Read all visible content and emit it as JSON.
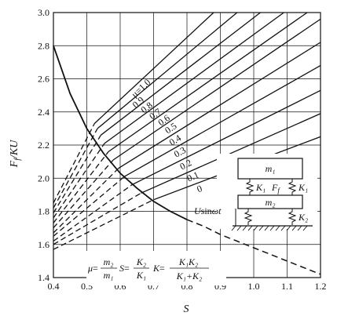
{
  "chart_data": {
    "type": "line",
    "xlabel": "S",
    "ylabel_main": "F",
    "ylabel_sub": "f",
    "ylabel_tail": "/KU",
    "xlim": [
      0.4,
      1.2
    ],
    "ylim": [
      1.4,
      3.0
    ],
    "x_ticks": [
      "0.4",
      "0.5",
      "0.6",
      "0.7",
      "0.8",
      "0.9",
      "1.0",
      "1.1",
      "1.2"
    ],
    "y_ticks": [
      "1.4",
      "1.6",
      "1.8",
      "2.0",
      "2.2",
      "2.4",
      "2.6",
      "2.8",
      "3.0"
    ],
    "grid": true,
    "series": [
      {
        "name": "μ=1.0",
        "label": "μ=1.0",
        "dashed": {
          "x": [
            0.4,
            0.523
          ],
          "y": [
            1.85,
            2.33
          ]
        },
        "solid": {
          "x": [
            0.523,
            0.88
          ],
          "y": [
            2.33,
            3.0
          ]
        }
      },
      {
        "name": "0.9",
        "label": "0.9",
        "dashed": {
          "x": [
            0.4,
            0.532
          ],
          "y": [
            1.82,
            2.3
          ]
        },
        "solid": {
          "x": [
            0.532,
            0.95
          ],
          "y": [
            2.3,
            3.0
          ]
        }
      },
      {
        "name": "0.8",
        "label": "0.8",
        "dashed": {
          "x": [
            0.4,
            0.542
          ],
          "y": [
            1.79,
            2.26
          ]
        },
        "solid": {
          "x": [
            0.542,
            1.02
          ],
          "y": [
            2.26,
            3.0
          ]
        }
      },
      {
        "name": "0.7",
        "label": "0.7",
        "dashed": {
          "x": [
            0.4,
            0.553
          ],
          "y": [
            1.76,
            2.21
          ]
        },
        "solid": {
          "x": [
            0.553,
            1.09
          ],
          "y": [
            2.21,
            3.0
          ]
        }
      },
      {
        "name": "0.6",
        "label": "0.6",
        "dashed": {
          "x": [
            0.4,
            0.565
          ],
          "y": [
            1.73,
            2.16
          ]
        },
        "solid": {
          "x": [
            0.565,
            1.16
          ],
          "y": [
            2.16,
            3.0
          ]
        }
      },
      {
        "name": "0.5",
        "label": "0.5",
        "dashed": {
          "x": [
            0.4,
            0.579
          ],
          "y": [
            1.7,
            2.11
          ]
        },
        "solid": {
          "x": [
            0.579,
            1.2
          ],
          "y": [
            2.11,
            2.96
          ]
        }
      },
      {
        "name": "0.4",
        "label": "0.4",
        "dashed": {
          "x": [
            0.4,
            0.595
          ],
          "y": [
            1.67,
            2.06
          ]
        },
        "solid": {
          "x": [
            0.595,
            1.2
          ],
          "y": [
            2.06,
            2.82
          ]
        }
      },
      {
        "name": "0.3",
        "label": "0.3",
        "dashed": {
          "x": [
            0.4,
            0.613
          ],
          "y": [
            1.65,
            2.01
          ]
        },
        "solid": {
          "x": [
            0.613,
            1.2
          ],
          "y": [
            2.01,
            2.68
          ]
        }
      },
      {
        "name": "0.2",
        "label": "0.2",
        "dashed": {
          "x": [
            0.4,
            0.635
          ],
          "y": [
            1.62,
            1.96
          ]
        },
        "solid": {
          "x": [
            0.635,
            1.2
          ],
          "y": [
            1.96,
            2.53
          ]
        }
      },
      {
        "name": "0.1",
        "label": "0.1",
        "dashed": {
          "x": [
            0.4,
            0.662
          ],
          "y": [
            1.6,
            1.91
          ]
        },
        "solid": {
          "x": [
            0.662,
            1.2
          ],
          "y": [
            1.91,
            2.39
          ]
        }
      },
      {
        "name": "0",
        "label": "0",
        "dashed": {
          "x": [
            0.4,
            0.7
          ],
          "y": [
            1.57,
            1.87
          ]
        },
        "solid": {
          "x": [
            0.7,
            1.2
          ],
          "y": [
            1.87,
            2.25
          ]
        }
      }
    ],
    "boundary_curve": {
      "solid": {
        "x": [
          0.4,
          0.45,
          0.5,
          0.55,
          0.6,
          0.65,
          0.7,
          0.75,
          0.8
        ],
        "y": [
          2.8,
          2.51,
          2.3,
          2.15,
          2.03,
          1.94,
          1.86,
          1.8,
          1.75
        ]
      },
      "dashed": {
        "x": [
          0.8,
          0.85,
          0.9,
          0.95,
          1.0,
          1.05,
          1.1,
          1.15,
          1.2
        ],
        "y": [
          1.75,
          1.71,
          1.66,
          1.62,
          1.58,
          1.54,
          1.5,
          1.46,
          1.42
        ]
      }
    },
    "formula": {
      "mu": "μ",
      "eq": "=",
      "m2": "m₂",
      "m1": "m₁",
      "S": "S",
      "K2": "K₂",
      "K1": "K₁",
      "K": "K",
      "K1K2": "K₁K₂",
      "K1plusK2": "K₁+K₂"
    },
    "inset": {
      "m1": "m₁",
      "m2": "m₂",
      "K1": "K₁",
      "Ff": "F",
      "Ff_sub": "f",
      "K1_right": "K₁",
      "U": "U",
      "sin": "sin",
      "omega_t": "ωt",
      "K2": "K₂"
    }
  }
}
